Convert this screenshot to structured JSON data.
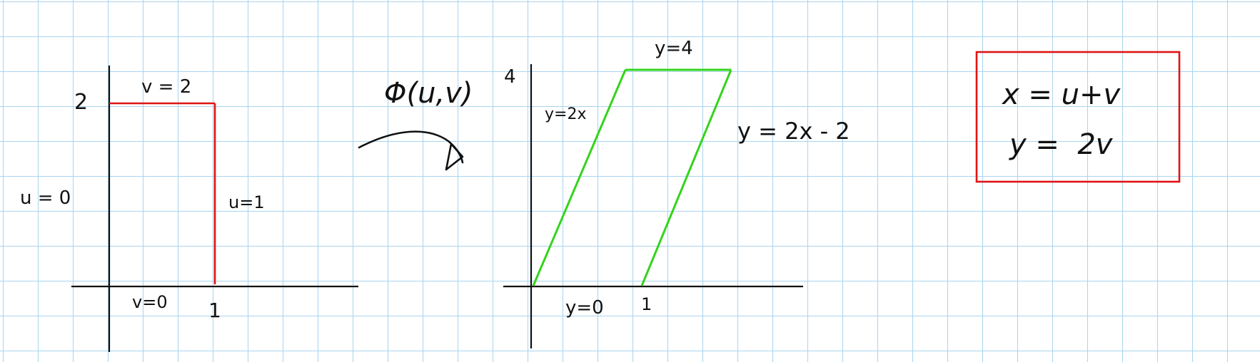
{
  "left_region": {
    "tick_y": "2",
    "tick_x": "1",
    "label_top": "v = 2",
    "label_bottom": "v=0",
    "label_left": "u = 0",
    "label_right": "u=1"
  },
  "map": {
    "label": "Φ(u,v)"
  },
  "right_region": {
    "tick_y": "4",
    "tick_x": "1",
    "label_top": "y=4",
    "label_left_edge": "y=2x",
    "label_right_edge": "y = 2x - 2",
    "label_bottom": "y=0"
  },
  "equations": {
    "line1": "x = u+v",
    "line2": "y =  2v"
  },
  "colors": {
    "domain_region": "#e01414",
    "image_region": "#33d41a",
    "equation_box": "#e01414",
    "grid": "#a9d4f0"
  }
}
